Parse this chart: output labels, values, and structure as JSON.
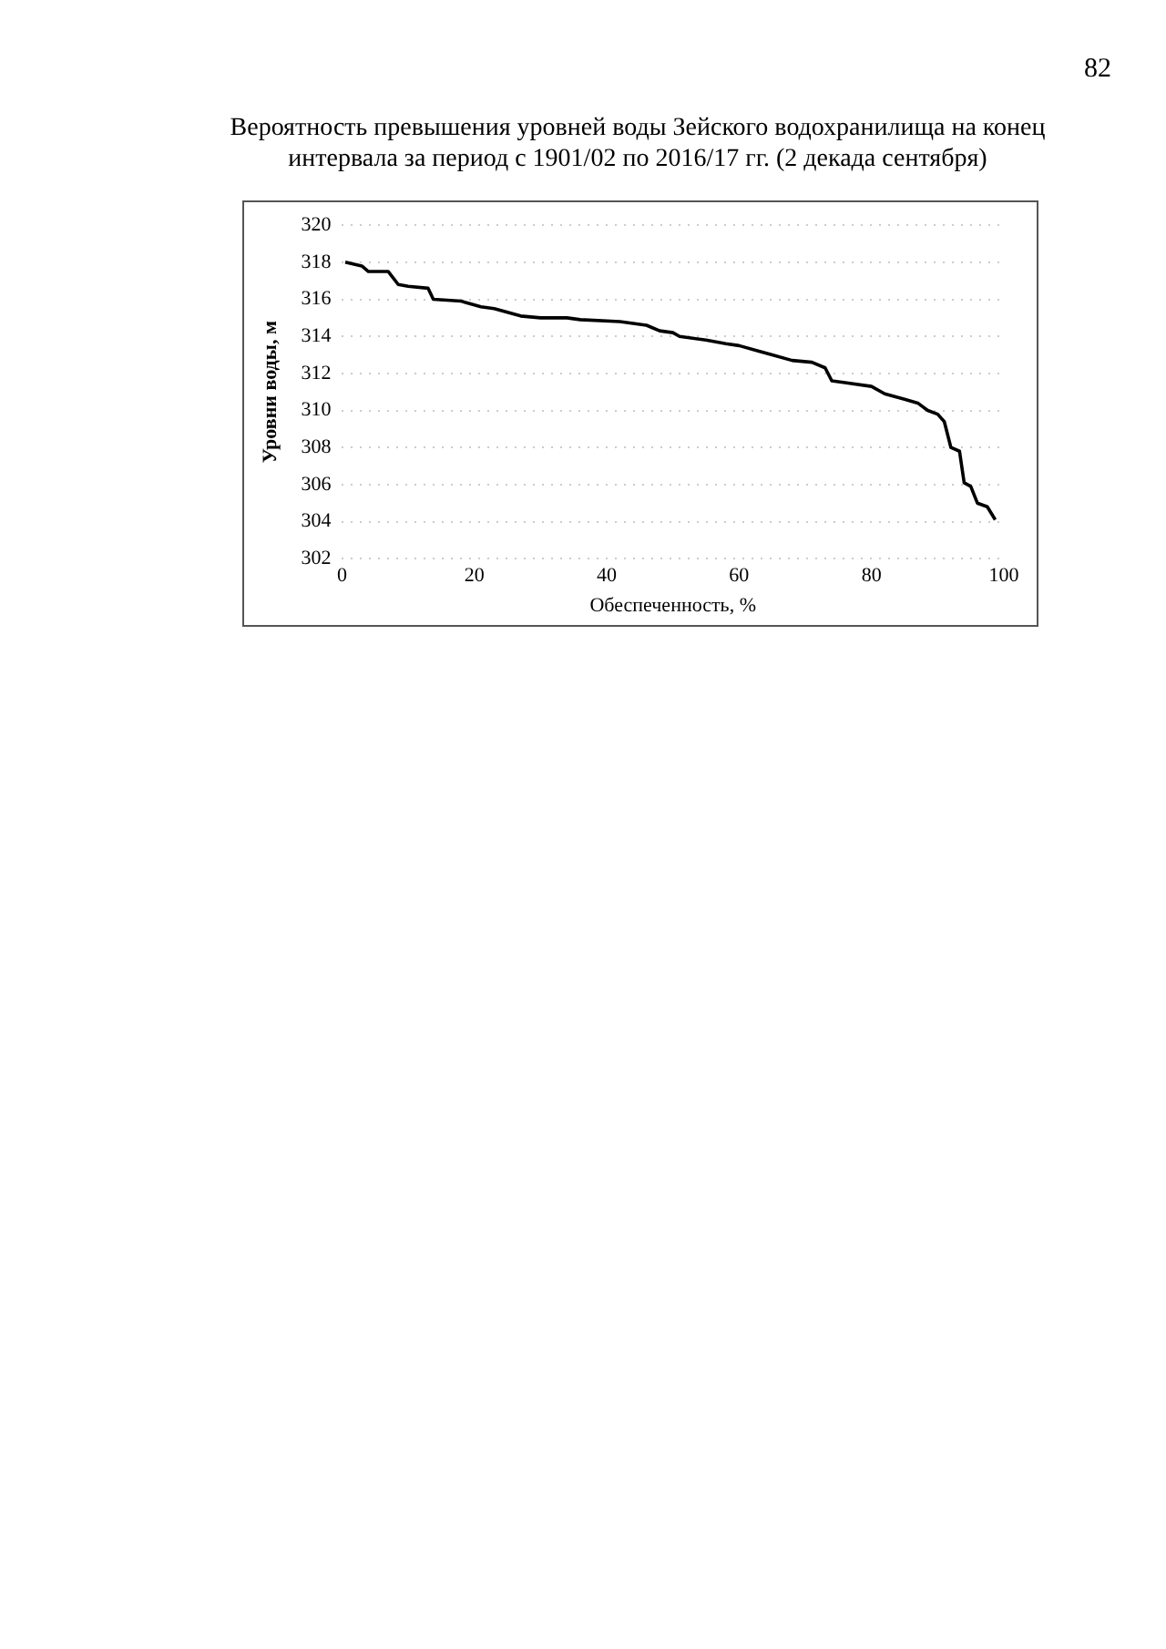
{
  "chart_data": {
    "type": "line",
    "title": "Вероятность превышения уровней воды Зейского водохранилища на конец интервала за период с 1901/02 по 2016/17 гг. (2 декада сентября)",
    "xlabel": "Обеспеченность, %",
    "ylabel": "Уровни воды, м",
    "annotations": [
      "82"
    ],
    "x": [
      0.5,
      3,
      4,
      7,
      8.5,
      10,
      13,
      13.8,
      18,
      21,
      23,
      27,
      30,
      34,
      36,
      42,
      46,
      48,
      50,
      51,
      55,
      58,
      60,
      63,
      65,
      68,
      71,
      73,
      74,
      76,
      80,
      82,
      85,
      87,
      88.5,
      90,
      91,
      92,
      93.3,
      94,
      95,
      96,
      97.5,
      98.7
    ],
    "series": [
      {
        "color": "#000000",
        "values": [
          318.0,
          317.8,
          317.5,
          317.5,
          316.8,
          316.7,
          316.6,
          316.0,
          315.9,
          315.6,
          315.5,
          315.1,
          315.0,
          315.0,
          314.9,
          314.8,
          314.6,
          314.3,
          314.2,
          314.0,
          313.8,
          313.6,
          313.5,
          313.2,
          313.0,
          312.7,
          312.6,
          312.3,
          311.6,
          311.5,
          311.3,
          310.9,
          310.6,
          310.4,
          310.0,
          309.8,
          309.4,
          308.0,
          307.8,
          306.1,
          305.9,
          305.0,
          304.8,
          304.1
        ]
      }
    ],
    "xlim": [
      0,
      100
    ],
    "xticks": [
      0,
      20,
      40,
      60,
      80,
      100
    ],
    "ylim": [
      302,
      320
    ],
    "yticks": [
      302,
      304,
      306,
      308,
      310,
      312,
      314,
      316,
      318,
      320
    ],
    "grid": "y",
    "legend": false,
    "marker": "none",
    "line_style": "solid"
  }
}
